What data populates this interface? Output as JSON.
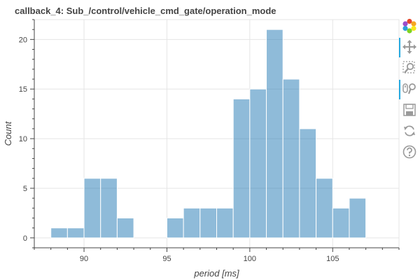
{
  "chart_data": {
    "type": "bar",
    "title": "callback_4: Sub_/control/vehicle_cmd_gate/operation_mode",
    "xlabel": "period [ms]",
    "ylabel": "Count",
    "xlim": [
      87,
      109
    ],
    "ylim": [
      -1,
      22
    ],
    "xticks": [
      90,
      95,
      100,
      105
    ],
    "yticks": [
      0,
      5,
      10,
      15,
      20
    ],
    "grid": true,
    "bar_color": "#1f77b4",
    "bins": [
      {
        "start": 88,
        "end": 89,
        "count": 1
      },
      {
        "start": 89,
        "end": 90,
        "count": 1
      },
      {
        "start": 90,
        "end": 91,
        "count": 6
      },
      {
        "start": 91,
        "end": 92,
        "count": 6
      },
      {
        "start": 92,
        "end": 93,
        "count": 2
      },
      {
        "start": 93,
        "end": 94,
        "count": 0
      },
      {
        "start": 94,
        "end": 95,
        "count": 0
      },
      {
        "start": 95,
        "end": 96,
        "count": 2
      },
      {
        "start": 96,
        "end": 97,
        "count": 3
      },
      {
        "start": 97,
        "end": 98,
        "count": 3
      },
      {
        "start": 98,
        "end": 99,
        "count": 3
      },
      {
        "start": 99,
        "end": 100,
        "count": 14
      },
      {
        "start": 100,
        "end": 101,
        "count": 15
      },
      {
        "start": 101,
        "end": 102,
        "count": 21
      },
      {
        "start": 102,
        "end": 103,
        "count": 16
      },
      {
        "start": 103,
        "end": 104,
        "count": 11
      },
      {
        "start": 104,
        "end": 105,
        "count": 6
      },
      {
        "start": 105,
        "end": 106,
        "count": 3
      },
      {
        "start": 106,
        "end": 107,
        "count": 4
      }
    ]
  },
  "toolbar": {
    "tools": [
      {
        "name": "bokeh-logo",
        "icon": "bokeh-logo-icon",
        "interactable": false,
        "active": false
      },
      {
        "name": "pan-tool",
        "icon": "pan-icon",
        "interactable": true,
        "active": true
      },
      {
        "name": "box-zoom-tool",
        "icon": "box-zoom-icon",
        "interactable": true,
        "active": false
      },
      {
        "name": "wheel-zoom-tool",
        "icon": "wheel-zoom-icon",
        "interactable": true,
        "active": true
      },
      {
        "name": "save-tool",
        "icon": "save-icon",
        "interactable": true,
        "active": false
      },
      {
        "name": "reset-tool",
        "icon": "reset-icon",
        "interactable": true,
        "active": false
      },
      {
        "name": "help-tool",
        "icon": "help-icon",
        "interactable": true,
        "active": false
      }
    ]
  }
}
